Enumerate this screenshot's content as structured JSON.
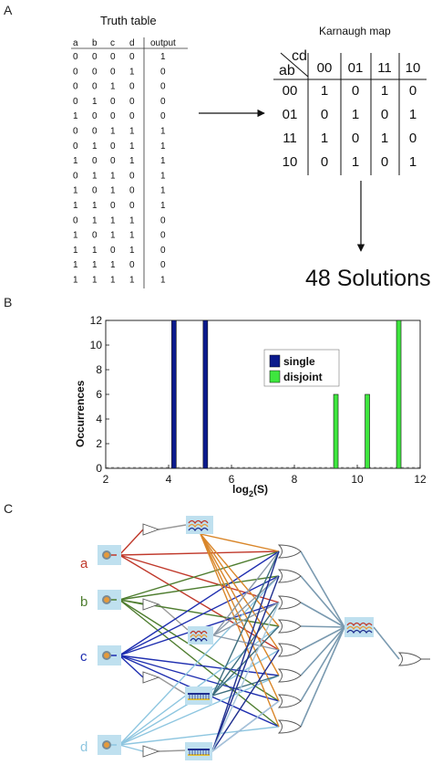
{
  "panels": {
    "a": "A",
    "b": "B",
    "c": "C"
  },
  "truth_table": {
    "title": "Truth table",
    "headers": [
      "a",
      "b",
      "c",
      "d",
      "output"
    ],
    "rows": [
      [
        "0",
        "0",
        "0",
        "0",
        "1"
      ],
      [
        "0",
        "0",
        "0",
        "1",
        "0"
      ],
      [
        "0",
        "0",
        "1",
        "0",
        "0"
      ],
      [
        "0",
        "1",
        "0",
        "0",
        "0"
      ],
      [
        "1",
        "0",
        "0",
        "0",
        "0"
      ],
      [
        "0",
        "0",
        "1",
        "1",
        "1"
      ],
      [
        "0",
        "1",
        "0",
        "1",
        "1"
      ],
      [
        "1",
        "0",
        "0",
        "1",
        "1"
      ],
      [
        "0",
        "1",
        "1",
        "0",
        "1"
      ],
      [
        "1",
        "0",
        "1",
        "0",
        "1"
      ],
      [
        "1",
        "1",
        "0",
        "0",
        "1"
      ],
      [
        "0",
        "1",
        "1",
        "1",
        "0"
      ],
      [
        "1",
        "0",
        "1",
        "1",
        "0"
      ],
      [
        "1",
        "1",
        "0",
        "1",
        "0"
      ],
      [
        "1",
        "1",
        "1",
        "0",
        "0"
      ],
      [
        "1",
        "1",
        "1",
        "1",
        "1"
      ]
    ]
  },
  "karnaugh": {
    "title": "Karnaugh map",
    "corner_top": "cd",
    "corner_bottom": "ab",
    "col_headers": [
      "00",
      "01",
      "11",
      "10"
    ],
    "row_headers": [
      "00",
      "01",
      "11",
      "10"
    ],
    "cells": [
      [
        "1",
        "0",
        "1",
        "0"
      ],
      [
        "0",
        "1",
        "0",
        "1"
      ],
      [
        "1",
        "0",
        "1",
        "0"
      ],
      [
        "0",
        "1",
        "0",
        "1"
      ]
    ]
  },
  "solutions_text": "48 Solutions",
  "chart_data": {
    "type": "bar",
    "xlabel": "log2(S)",
    "ylabel": "Occurrences",
    "xlim": [
      2,
      12
    ],
    "ylim": [
      0,
      12
    ],
    "xticks": [
      "2",
      "4",
      "6",
      "8",
      "10",
      "12"
    ],
    "yticks": [
      "0",
      "2",
      "4",
      "6",
      "8",
      "10",
      "12"
    ],
    "legend_position": "top-right",
    "series": [
      {
        "name": "single",
        "color": "#0b1a8c",
        "x": [
          4.17,
          5.17
        ],
        "values": [
          12,
          12
        ]
      },
      {
        "name": "disjoint",
        "color": "#3ee63e",
        "x": [
          9.32,
          10.32,
          11.32
        ],
        "values": [
          6,
          6,
          12
        ]
      }
    ]
  },
  "circuit": {
    "inputs": [
      {
        "label": "a",
        "color": "#c0392b"
      },
      {
        "label": "b",
        "color": "#4e7d2f"
      },
      {
        "label": "c",
        "color": "#1f2fb0"
      },
      {
        "label": "d",
        "color": "#8ec6e0"
      }
    ],
    "wire_colors": {
      "orange": "#d9862a",
      "teal": "#3d6e7e",
      "navy": "#1f2f8f",
      "grey": "#8c9aa8",
      "lightblue": "#a8c8dc"
    }
  }
}
